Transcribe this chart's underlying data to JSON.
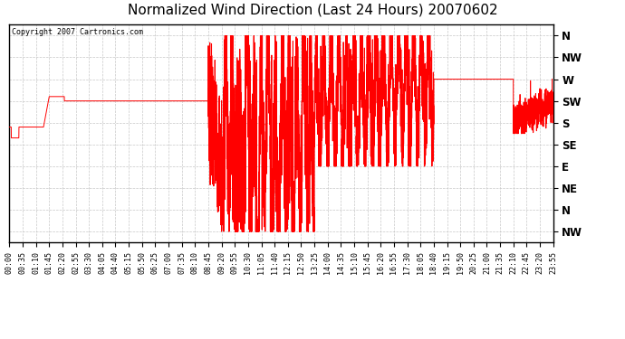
{
  "title": "Normalized Wind Direction (Last 24 Hours) 20070602",
  "copyright_text": "Copyright 2007 Cartronics.com",
  "line_color": "#FF0000",
  "background_color": "#FFFFFF",
  "grid_color": "#C8C8C8",
  "border_color": "#000000",
  "title_fontsize": 11,
  "ytick_labels": [
    "NW",
    "N",
    "NE",
    "E",
    "SE",
    "S",
    "SW",
    "W",
    "NW",
    "N"
  ],
  "ytick_values": [
    0,
    1,
    2,
    3,
    4,
    5,
    6,
    7,
    8,
    9
  ],
  "xtick_labels": [
    "00:00",
    "00:35",
    "01:10",
    "01:45",
    "02:20",
    "02:55",
    "03:30",
    "04:05",
    "04:40",
    "05:15",
    "05:50",
    "06:25",
    "07:00",
    "07:35",
    "08:10",
    "08:45",
    "09:20",
    "09:55",
    "10:30",
    "11:05",
    "11:40",
    "12:15",
    "12:50",
    "13:25",
    "14:00",
    "14:35",
    "15:10",
    "15:45",
    "16:20",
    "16:55",
    "17:30",
    "18:05",
    "18:40",
    "19:15",
    "19:50",
    "20:25",
    "21:00",
    "21:35",
    "22:10",
    "22:45",
    "23:20",
    "23:55"
  ],
  "xmin": 0,
  "xmax": 1435,
  "ymin": -0.5,
  "ymax": 9.5
}
